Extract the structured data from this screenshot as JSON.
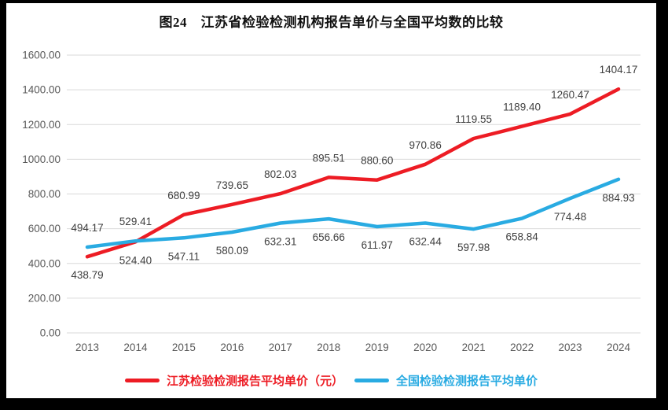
{
  "window": {
    "outer_background": "#000000",
    "page_background": "#ffffff"
  },
  "chart_data": {
    "type": "line",
    "title": "图24　江苏省检验检测机构报告单价与全国平均数的比较",
    "categories": [
      "2013",
      "2014",
      "2015",
      "2016",
      "2017",
      "2018",
      "2019",
      "2020",
      "2021",
      "2022",
      "2023",
      "2024"
    ],
    "series": [
      {
        "name": "江苏检验检测报告平均单价（元）",
        "color": "#ed1c24",
        "values": [
          438.79,
          524.4,
          680.99,
          739.65,
          802.03,
          895.51,
          880.6,
          970.86,
          1119.55,
          1189.4,
          1260.47,
          1404.17
        ],
        "label_side": [
          "below",
          "below",
          "above",
          "above",
          "above",
          "above",
          "above",
          "above",
          "above",
          "above",
          "above",
          "above"
        ]
      },
      {
        "name": "全国检验检测报告平均单价",
        "color": "#29abe2",
        "values": [
          494.17,
          529.41,
          547.11,
          580.09,
          632.31,
          656.66,
          611.97,
          632.44,
          597.98,
          658.84,
          774.48,
          884.93
        ],
        "label_side": [
          "above",
          "above",
          "below",
          "below",
          "below",
          "below",
          "below",
          "below",
          "below",
          "below",
          "below",
          "below"
        ]
      }
    ],
    "ylim": [
      0,
      1600
    ],
    "ytick_step": 200,
    "ytick_labels": [
      "1600.00",
      "1400.00",
      "1200.00",
      "1000.00",
      "800.00",
      "600.00",
      "400.00",
      "200.00",
      "0.00"
    ],
    "value_label_decimals": 2,
    "grid": "horizontal",
    "gridline_color": "#d9d9d9",
    "axis_text_color": "#595959",
    "data_label_color": "#404040",
    "legend_position": "bottom",
    "data_labels": true
  }
}
